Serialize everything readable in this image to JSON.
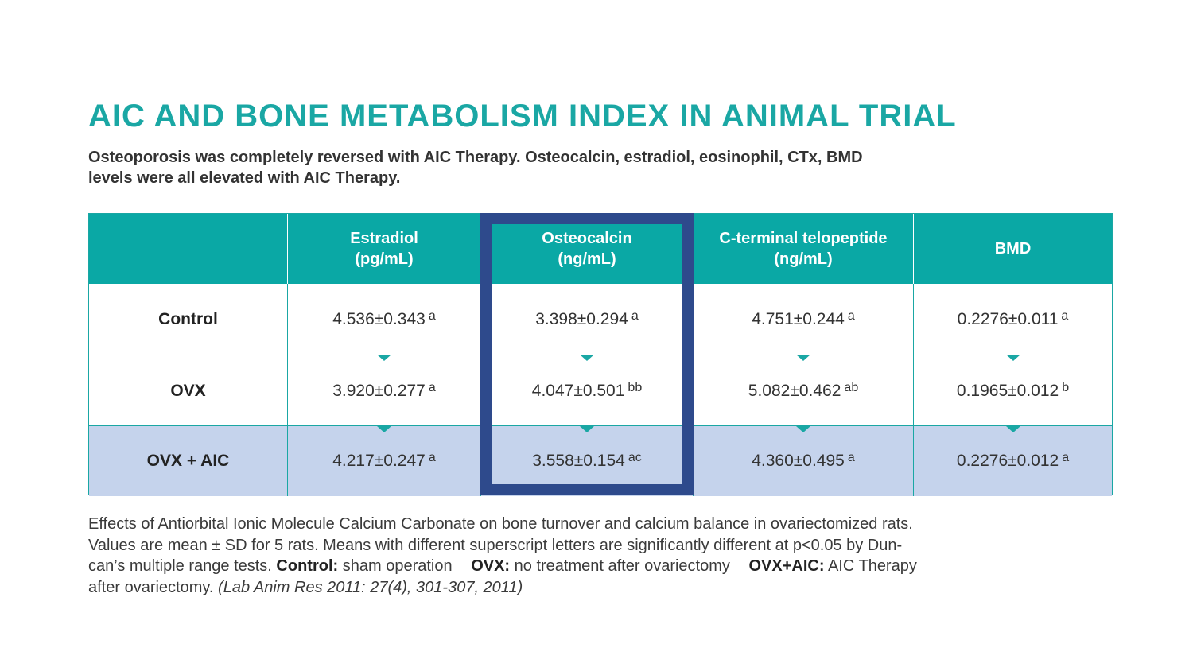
{
  "title": "AIC AND BONE METABOLISM INDEX IN ANIMAL TRIAL",
  "subtitle": {
    "line1": "Osteoporosis was completely reversed with AIC Therapy.  Osteocalcin, estradiol, eosinophil, CTx, BMD",
    "line2": "levels were all elevated with AIC Therapy."
  },
  "table": {
    "headers": [
      {
        "line1": "",
        "line2": ""
      },
      {
        "line1": "Estradiol",
        "line2": "(pg/mL)"
      },
      {
        "line1": "Osteocalcin",
        "line2": "(ng/mL)"
      },
      {
        "line1": "C-terminal telopeptide",
        "line2": "(ng/mL)"
      },
      {
        "line1": "BMD",
        "line2": ""
      }
    ],
    "rows": [
      {
        "label": "Control",
        "cells": [
          {
            "value": "4.536±0.343",
            "sup": "a"
          },
          {
            "value": "3.398±0.294",
            "sup": "a"
          },
          {
            "value": "4.751±0.244",
            "sup": "a"
          },
          {
            "value": "0.2276±0.011",
            "sup": "a"
          }
        ]
      },
      {
        "label": "OVX",
        "cells": [
          {
            "value": "3.920±0.277",
            "sup": "a"
          },
          {
            "value": "4.047±0.501",
            "sup": "bb"
          },
          {
            "value": "5.082±0.462",
            "sup": "ab"
          },
          {
            "value": "0.1965±0.012",
            "sup": "b"
          }
        ]
      },
      {
        "label": "OVX + AIC",
        "cells": [
          {
            "value": "4.217±0.247",
            "sup": "a"
          },
          {
            "value": "3.558±0.154",
            "sup": "ac"
          },
          {
            "value": "4.360±0.495",
            "sup": "a"
          },
          {
            "value": "0.2276±0.012",
            "sup": "a"
          }
        ]
      }
    ]
  },
  "caption": {
    "line1": "Effects of Antiorbital Ionic Molecule Calcium Carbonate on bone turnover and calcium balance in ovariectomized rats.",
    "line2": "Values are mean ± SD for 5 rats. Means with different superscript letters are significantly different at p<0.05 by Dun-",
    "line3_pre": "can’s multiple range tests.",
    "control_label": "Control:",
    "control_text": "sham operation",
    "ovx_label": "OVX:",
    "ovx_text": "no treatment after ovariectomy",
    "ovxaic_label": "OVX+AIC:",
    "ovxaic_text": "AIC Therapy",
    "line4_pre": "after ovariectomy.",
    "citation": "(Lab Anim Res 2011: 27(4), 301-307, 2011)"
  },
  "colors": {
    "accent": "#1aa7a4",
    "header_bg": "#0aa8a5",
    "highlight_border": "#2e4a8c",
    "highlight_row": "#c5d3ec"
  }
}
